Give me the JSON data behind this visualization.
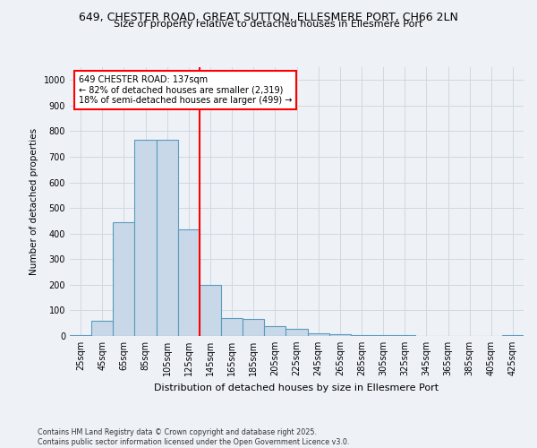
{
  "title_line1": "649, CHESTER ROAD, GREAT SUTTON, ELLESMERE PORT, CH66 2LN",
  "title_line2": "Size of property relative to detached houses in Ellesmere Port",
  "xlabel": "Distribution of detached houses by size in Ellesmere Port",
  "ylabel": "Number of detached properties",
  "bin_labels": [
    "25sqm",
    "45sqm",
    "65sqm",
    "85sqm",
    "105sqm",
    "125sqm",
    "145sqm",
    "165sqm",
    "185sqm",
    "205sqm",
    "225sqm",
    "245sqm",
    "265sqm",
    "285sqm",
    "305sqm",
    "325sqm",
    "345sqm",
    "365sqm",
    "385sqm",
    "405sqm",
    "425sqm"
  ],
  "bar_values": [
    5,
    60,
    445,
    765,
    765,
    415,
    200,
    70,
    65,
    40,
    28,
    10,
    8,
    5,
    3,
    5,
    0,
    0,
    0,
    0,
    5
  ],
  "bar_color": "#c8d8e8",
  "bar_edge_color": "#5a9abf",
  "grid_color": "#d0d8e0",
  "background_color": "#eef2f7",
  "marker_color": "red",
  "annotation_text": "649 CHESTER ROAD: 137sqm\n← 82% of detached houses are smaller (2,319)\n18% of semi-detached houses are larger (499) →",
  "footer_text": "Contains HM Land Registry data © Crown copyright and database right 2025.\nContains public sector information licensed under the Open Government Licence v3.0.",
  "ylim": [
    0,
    1050
  ],
  "yticks": [
    0,
    100,
    200,
    300,
    400,
    500,
    600,
    700,
    800,
    900,
    1000
  ]
}
